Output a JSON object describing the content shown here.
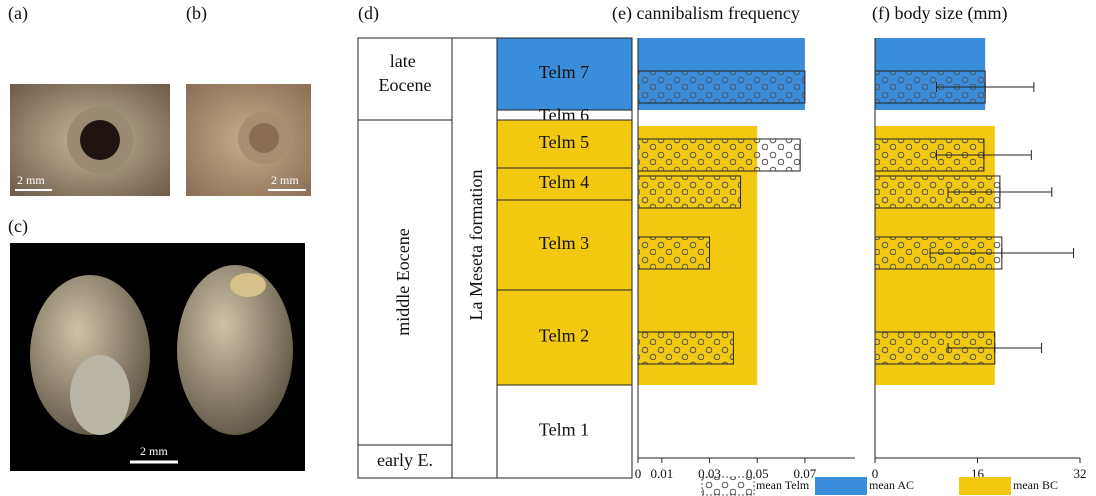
{
  "photos": {
    "a": {
      "label": "(a)",
      "scale": "2 mm"
    },
    "b": {
      "label": "(b)",
      "scale": "2 mm"
    },
    "c": {
      "label": "(c)",
      "scale": "2 mm"
    }
  },
  "stratigraphy": {
    "label": "(d)",
    "epochs": [
      "late Eocene",
      "middle Eocene",
      "early E."
    ],
    "formation": "La Meseta formation",
    "units": [
      "Telm 7",
      "Telm 6",
      "Telm 5",
      "Telm 4",
      "Telm 3",
      "Telm 2",
      "Telm 1"
    ]
  },
  "chart_data": [
    {
      "type": "bar",
      "title": "(e) cannibalism frequency",
      "categories": [
        "Telm 7",
        "Telm 5",
        "Telm 4",
        "Telm 3",
        "Telm 2"
      ],
      "series": [
        {
          "name": "mean Telm",
          "values": [
            0.07,
            0.068,
            0.043,
            0.03,
            0.04
          ]
        }
      ],
      "means": [
        {
          "name": "mean AC",
          "color": "#3a8ddb",
          "value": 0.07
        },
        {
          "name": "mean BC",
          "color": "#f2c811",
          "value": 0.05
        }
      ],
      "xlim": [
        0,
        0.091
      ],
      "xticks": [
        0,
        0.01,
        0.03,
        0.05,
        0.07
      ]
    },
    {
      "type": "bar",
      "title": "(f) body size (mm)",
      "categories": [
        "Telm 7",
        "Telm 5",
        "Telm 4",
        "Telm 3",
        "Telm 2"
      ],
      "series": [
        {
          "values": [
            17.2,
            17.0,
            19.5,
            19.8,
            18.7
          ],
          "errors": [
            7.6,
            7.4,
            8.1,
            11.2,
            7.3
          ]
        }
      ],
      "means": [
        {
          "color": "#3a8ddb",
          "value": 17.2
        },
        {
          "color": "#f2c811",
          "value": 18.7
        }
      ],
      "xlim": [
        0,
        32
      ],
      "xticks": [
        0,
        16,
        32
      ]
    }
  ]
}
